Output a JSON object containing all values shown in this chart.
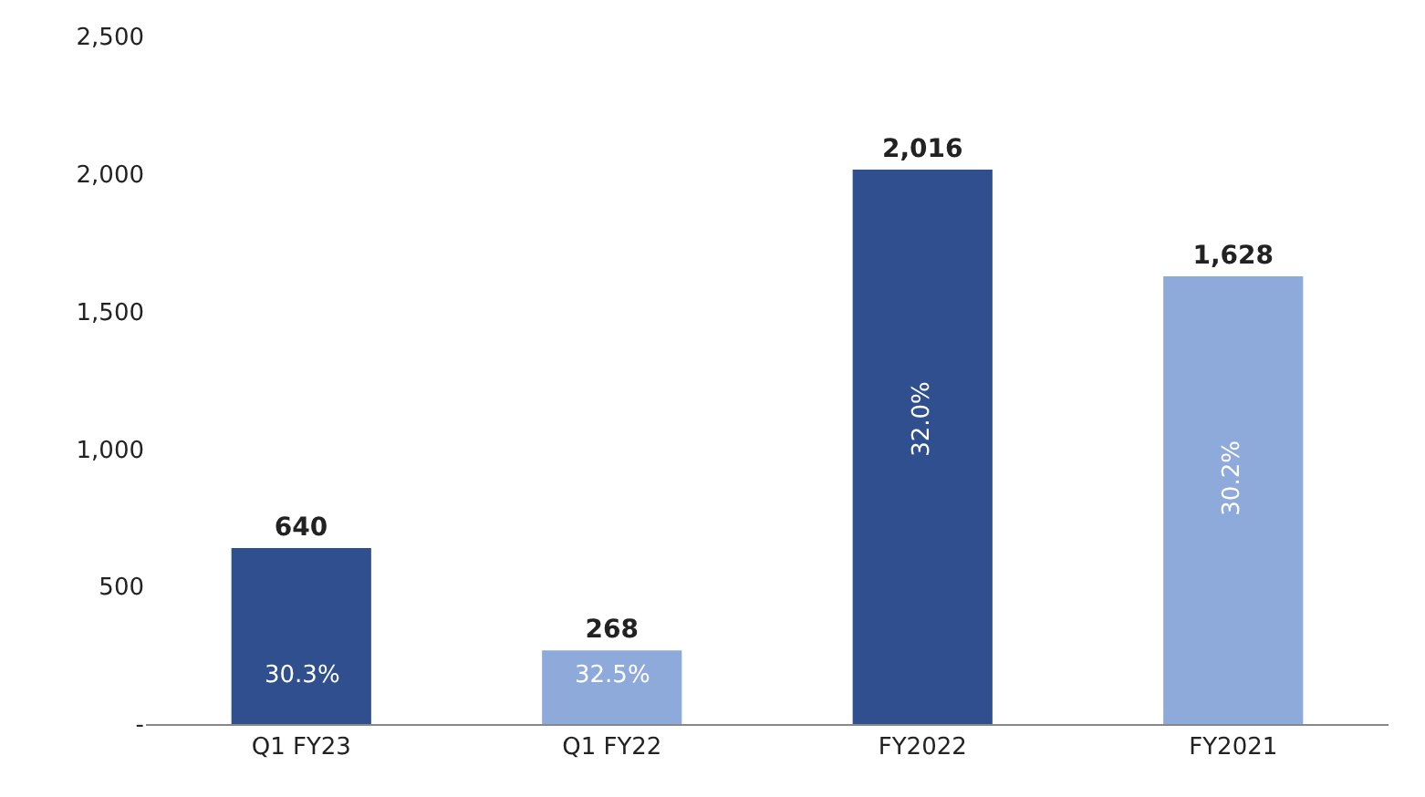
{
  "chart_data": {
    "type": "bar",
    "categories": [
      "Q1 FY23",
      "Q1 FY22",
      "FY2022",
      "FY2021"
    ],
    "values": [
      640,
      268,
      2016,
      1628
    ],
    "colors": [
      "#2f4f8f",
      "#8eaadb",
      "#2f4f8f",
      "#8eaadb"
    ],
    "value_labels": [
      "640",
      "268",
      "2,016",
      "1,628"
    ],
    "ylim": [
      0,
      2500
    ],
    "yticks": [
      {
        "value": 0,
        "label": "-"
      },
      {
        "value": 500,
        "label": "500"
      },
      {
        "value": 1000,
        "label": "1,000"
      },
      {
        "value": 1500,
        "label": "1,500"
      },
      {
        "value": 2000,
        "label": "2,000"
      },
      {
        "value": 2500,
        "label": "2,500"
      }
    ],
    "legend": false,
    "annotations": [
      "30.3%",
      "32.5%",
      "32.0%",
      "30.2%"
    ]
  }
}
